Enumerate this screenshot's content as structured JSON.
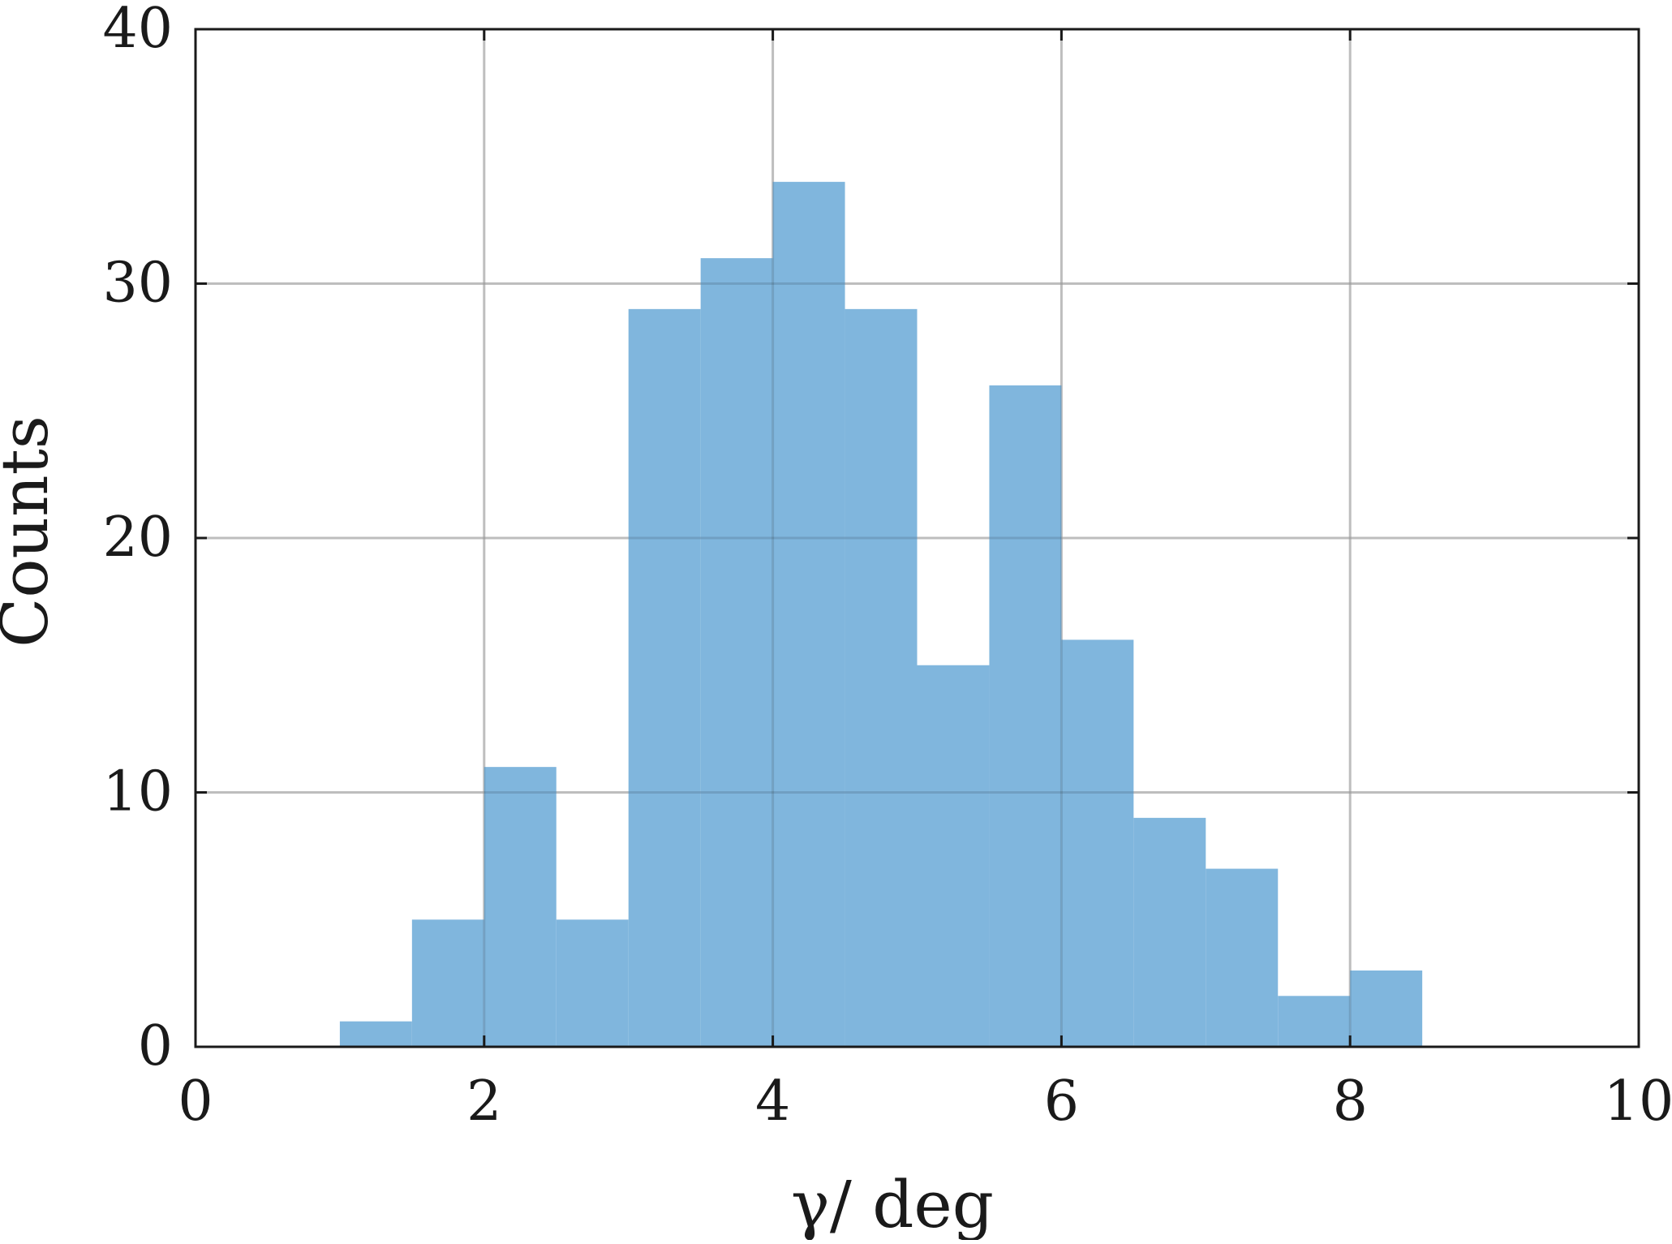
{
  "chart_data": {
    "type": "bar",
    "subtype": "histogram",
    "xlabel": "γ/ deg",
    "ylabel": "Counts",
    "xlim": [
      0,
      10
    ],
    "ylim": [
      0,
      40
    ],
    "xticks": [
      0,
      2,
      4,
      6,
      8,
      10
    ],
    "yticks": [
      0,
      10,
      20,
      30,
      40
    ],
    "xtick_labels": [
      "0",
      "2",
      "4",
      "6",
      "8",
      "10"
    ],
    "ytick_labels": [
      "0",
      "10",
      "20",
      "30",
      "40"
    ],
    "grid": true,
    "bin_width": 0.5,
    "bins": [
      {
        "x0": 1.0,
        "x1": 1.5,
        "count": 1
      },
      {
        "x0": 1.5,
        "x1": 2.0,
        "count": 5
      },
      {
        "x0": 2.0,
        "x1": 2.5,
        "count": 11
      },
      {
        "x0": 2.5,
        "x1": 3.0,
        "count": 5
      },
      {
        "x0": 3.0,
        "x1": 3.5,
        "count": 29
      },
      {
        "x0": 3.5,
        "x1": 4.0,
        "count": 31
      },
      {
        "x0": 4.0,
        "x1": 4.5,
        "count": 34
      },
      {
        "x0": 4.5,
        "x1": 5.0,
        "count": 29
      },
      {
        "x0": 5.0,
        "x1": 5.5,
        "count": 15
      },
      {
        "x0": 5.5,
        "x1": 6.0,
        "count": 26
      },
      {
        "x0": 6.0,
        "x1": 6.5,
        "count": 16
      },
      {
        "x0": 6.5,
        "x1": 7.0,
        "count": 9
      },
      {
        "x0": 7.0,
        "x1": 7.5,
        "count": 7
      },
      {
        "x0": 7.5,
        "x1": 8.0,
        "count": 2
      },
      {
        "x0": 8.0,
        "x1": 8.5,
        "count": 3
      }
    ],
    "colors": {
      "bar": "#80b6dd",
      "grid": "#d9d9d9",
      "axis": "#1a1a1a"
    }
  }
}
